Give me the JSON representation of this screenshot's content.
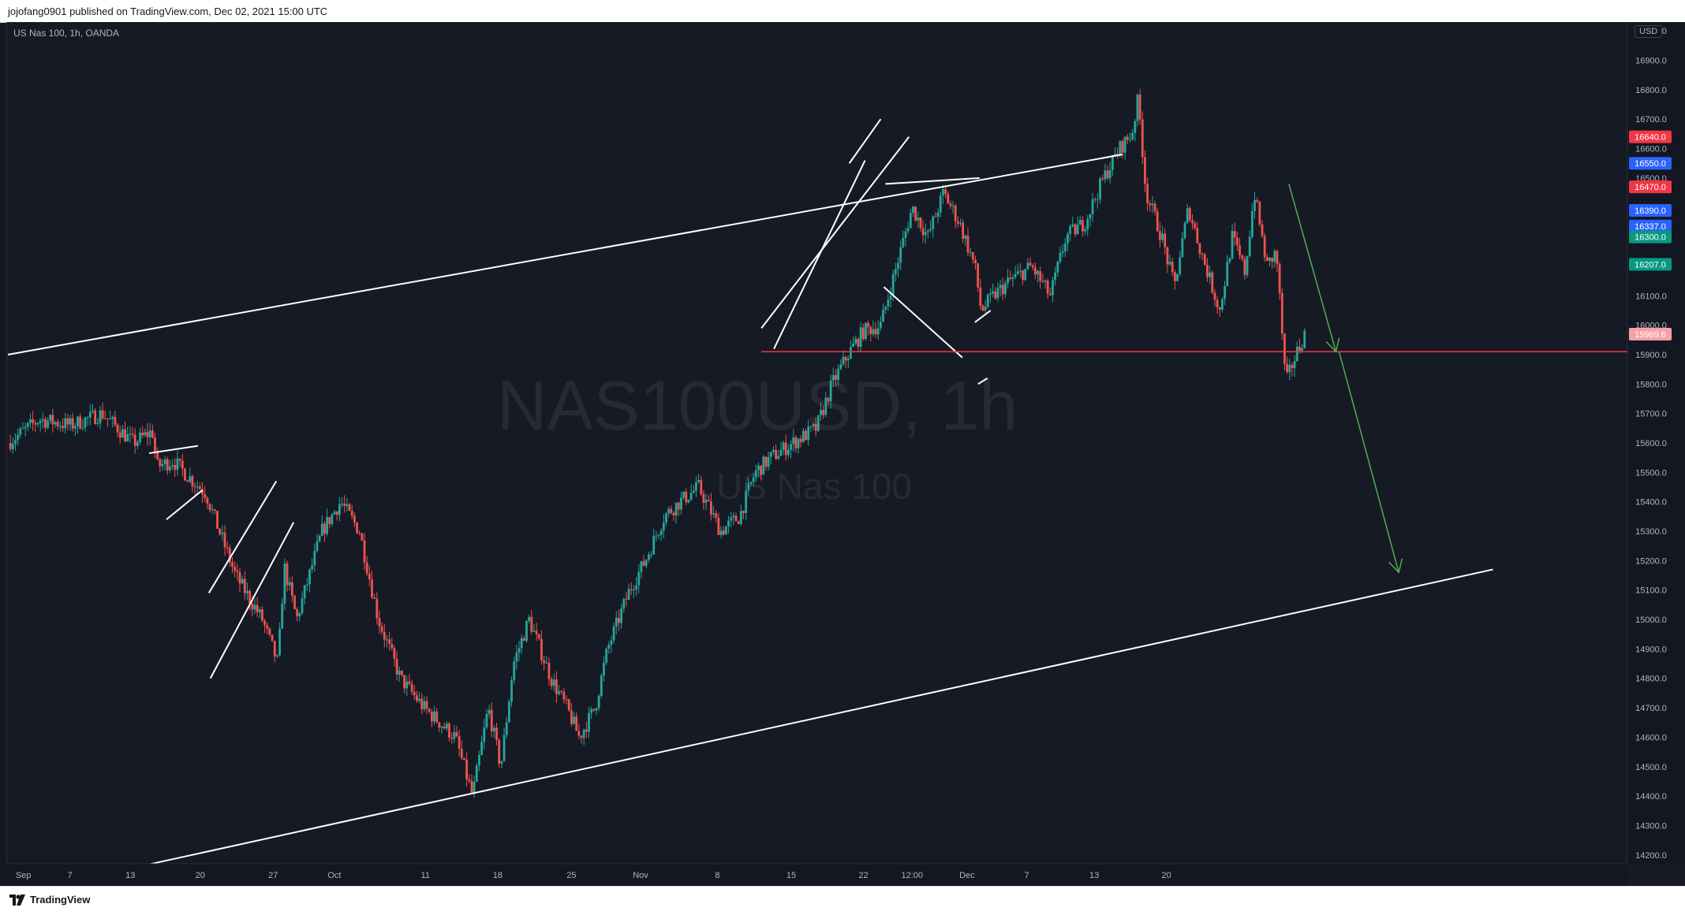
{
  "header": {
    "publish_text": "jojofang0901 published on TradingView.com, Dec 02, 2021 15:00 UTC"
  },
  "chart": {
    "symbol_label": "US Nas 100, 1h, OANDA",
    "watermark_title": "NAS100USD, 1h",
    "watermark_subtitle": "US Nas 100",
    "currency": "USD"
  },
  "footer": {
    "brand": "TradingView"
  },
  "colors": {
    "background": "#161a25",
    "candle_up": "#26a69a",
    "candle_down": "#ef5350",
    "trendline": "#ffffff",
    "support_line": "#f23645",
    "arrow": "#4caf50"
  },
  "price_badges": [
    {
      "value": "16640.0",
      "color": "#f23645"
    },
    {
      "value": "16550.0",
      "color": "#2962ff"
    },
    {
      "value": "16470.0",
      "color": "#f23645"
    },
    {
      "value": "16390.0",
      "color": "#2962ff"
    },
    {
      "value": "16337.0",
      "color": "#2962ff"
    },
    {
      "value": "16300.0",
      "color": "#089981"
    },
    {
      "value": "16207.0",
      "color": "#089981"
    },
    {
      "value": "15969.6",
      "color": "#f7a1a6"
    }
  ],
  "chart_data": {
    "type": "candlestick",
    "title": "NAS100USD, 1h",
    "subtitle": "US Nas 100",
    "ylabel": "USD",
    "ylim": [
      14170,
      17030
    ],
    "y_ticks": [
      "14200.0",
      "14300.0",
      "14400.0",
      "14500.0",
      "14600.0",
      "14700.0",
      "14800.0",
      "14900.0",
      "15000.0",
      "15100.0",
      "15200.0",
      "15300.0",
      "15400.0",
      "15500.0",
      "15600.0",
      "15700.0",
      "15800.0",
      "15900.0",
      "16000.0",
      "16100.0",
      "16200.0",
      "16300.0",
      "16400.0",
      "16500.0",
      "16600.0",
      "16700.0",
      "16800.0",
      "16900.0",
      "17000.0"
    ],
    "x_ticks": [
      "Sep",
      "7",
      "13",
      "20",
      "27",
      "Oct",
      "11",
      "18",
      "25",
      "Nov",
      "8",
      "15",
      "22",
      "12:00",
      "Dec",
      "7",
      "13",
      "20"
    ],
    "price_path": [
      [
        0,
        15600
      ],
      [
        2,
        15680
      ],
      [
        4,
        15660
      ],
      [
        6,
        15700
      ],
      [
        8,
        15600
      ],
      [
        9.2,
        15640
      ],
      [
        9.5,
        15520
      ],
      [
        10.5,
        15540
      ],
      [
        11.8,
        15470
      ],
      [
        12.6,
        15430
      ],
      [
        13.4,
        15310
      ],
      [
        14.5,
        15150
      ],
      [
        16.2,
        15000
      ],
      [
        17.2,
        14850
      ],
      [
        17.6,
        15180
      ],
      [
        18.4,
        15000
      ],
      [
        20,
        15300
      ],
      [
        21.2,
        15400
      ],
      [
        22.4,
        15300
      ],
      [
        23.6,
        15000
      ],
      [
        25,
        14800
      ],
      [
        26.5,
        14700
      ],
      [
        28.5,
        14600
      ],
      [
        29.6,
        14400
      ],
      [
        30.6,
        14700
      ],
      [
        31.4,
        14500
      ],
      [
        32.2,
        14850
      ],
      [
        33.2,
        15000
      ],
      [
        34.6,
        14800
      ],
      [
        35.6,
        14700
      ],
      [
        36.4,
        14600
      ],
      [
        37.4,
        14700
      ],
      [
        38.2,
        14900
      ],
      [
        39.6,
        15100
      ],
      [
        40.6,
        15200
      ],
      [
        41.8,
        15350
      ],
      [
        42.8,
        15400
      ],
      [
        44,
        15450
      ],
      [
        45.4,
        15300
      ],
      [
        46.6,
        15350
      ],
      [
        47.6,
        15500
      ],
      [
        48.6,
        15550
      ],
      [
        50,
        15600
      ],
      [
        51.5,
        15650
      ],
      [
        52.5,
        15800
      ],
      [
        53.5,
        15900
      ],
      [
        54.5,
        15980
      ],
      [
        55.6,
        16000
      ],
      [
        56.6,
        16200
      ],
      [
        57.6,
        16400
      ],
      [
        58.6,
        16300
      ],
      [
        59.6,
        16450
      ],
      [
        60.6,
        16350
      ],
      [
        61.6,
        16200
      ],
      [
        62,
        16050
      ],
      [
        62.8,
        16100
      ],
      [
        63.8,
        16150
      ],
      [
        65.2,
        16200
      ],
      [
        66.4,
        16100
      ],
      [
        67.4,
        16300
      ],
      [
        68.6,
        16350
      ],
      [
        69.8,
        16500
      ],
      [
        70.8,
        16600
      ],
      [
        71.6,
        16650
      ],
      [
        72,
        16770
      ],
      [
        72.5,
        16450
      ],
      [
        73.5,
        16300
      ],
      [
        74.3,
        16130
      ],
      [
        75.2,
        16400
      ],
      [
        76,
        16250
      ],
      [
        77.2,
        16050
      ],
      [
        78,
        16300
      ],
      [
        78.8,
        16180
      ],
      [
        79.4,
        16450
      ],
      [
        80.2,
        16200
      ],
      [
        80.8,
        16250
      ],
      [
        81.4,
        15800
      ],
      [
        81.9,
        15880
      ],
      [
        82.6,
        15969.6
      ]
    ],
    "annotations": {
      "resistance_level": 15910,
      "channel_upper": [
        [
          0,
          15900
        ],
        [
          71,
          16580
        ]
      ],
      "channel_lower": [
        [
          6.6,
          14140
        ],
        [
          94.6,
          15170
        ]
      ],
      "projection_arrows": [
        [
          [
            81.6,
            16480
          ],
          [
            84.6,
            15910
          ]
        ],
        [
          [
            84.8,
            15910
          ],
          [
            88.6,
            15160
          ]
        ]
      ]
    }
  }
}
